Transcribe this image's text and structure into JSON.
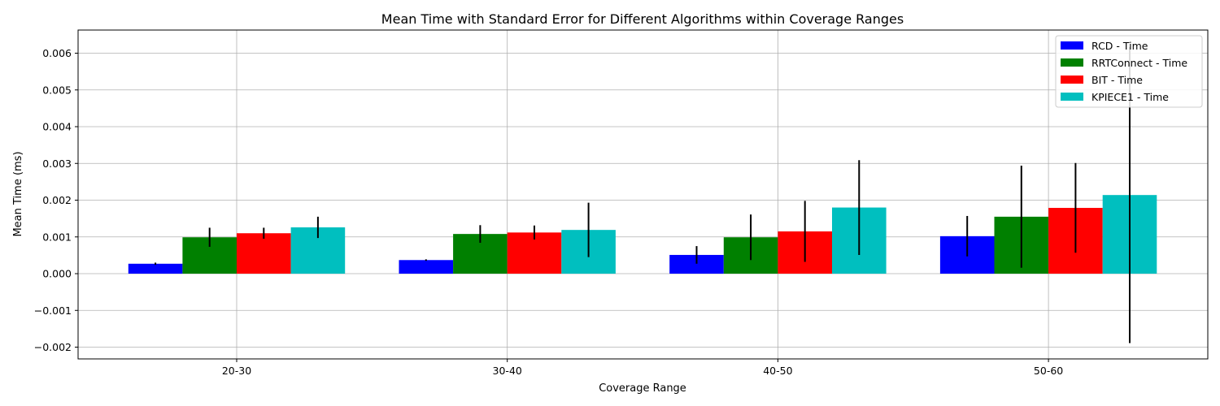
{
  "chart_data": {
    "type": "bar",
    "title": "Mean Time with Standard Error for Different Algorithms within Coverage Ranges",
    "xlabel": "Coverage Range",
    "ylabel": "Mean Time (ms)",
    "categories": [
      "20-30",
      "30-40",
      "40-50",
      "50-60"
    ],
    "ylim": [
      -0.00232,
      0.00663
    ],
    "yticks": [
      "0.006",
      "0.005",
      "0.004",
      "0.003",
      "0.002",
      "0.001",
      "0.000",
      "−0.001",
      "−0.002"
    ],
    "ytick_values": [
      0.006,
      0.005,
      0.004,
      0.003,
      0.002,
      0.001,
      0.0,
      -0.001,
      -0.002
    ],
    "grid": true,
    "legend_position": "top-right",
    "series": [
      {
        "name": "RCD - Time",
        "color": "#0000ff",
        "values": [
          0.00027,
          0.00037,
          0.00051,
          0.00102
        ],
        "errors": [
          3e-05,
          2e-05,
          0.00024,
          0.00055
        ]
      },
      {
        "name": "RRTConnect - Time",
        "color": "#008000",
        "values": [
          0.00099,
          0.00108,
          0.00099,
          0.00155
        ],
        "errors": [
          0.00026,
          0.00024,
          0.00062,
          0.00139
        ]
      },
      {
        "name": "BIT - Time",
        "color": "#ff0000",
        "values": [
          0.0011,
          0.00112,
          0.00115,
          0.00179
        ],
        "errors": [
          0.00015,
          0.00019,
          0.00083,
          0.00122
        ]
      },
      {
        "name": "KPIECE1 - Time",
        "color": "#00bfbf",
        "values": [
          0.00126,
          0.00119,
          0.0018,
          0.00214
        ],
        "errors": [
          0.00029,
          0.00074,
          0.00129,
          0.00403
        ]
      }
    ]
  }
}
